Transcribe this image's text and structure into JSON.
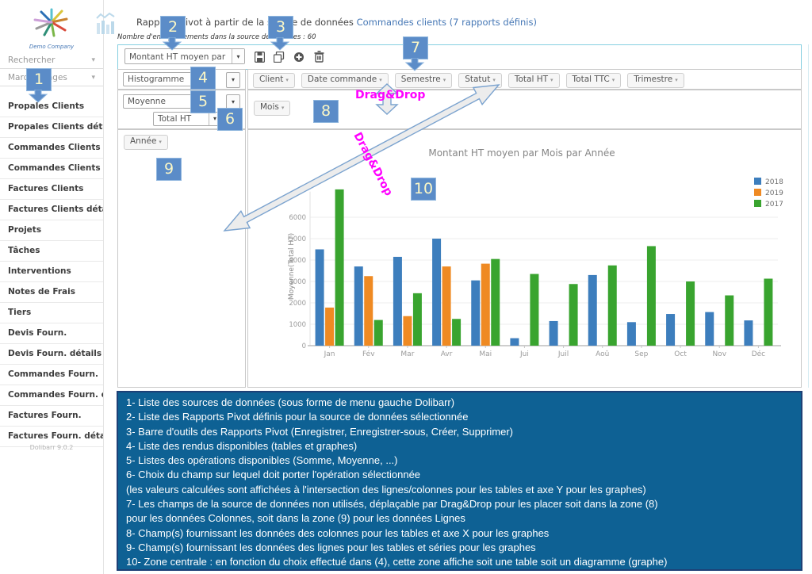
{
  "sidebar": {
    "logo_text": "Demo Company",
    "search_label": "Rechercher",
    "bookmarks_label": "Marque-pages",
    "items": [
      "Propales Clients",
      "Propales Clients détails",
      "Commandes Clients",
      "Commandes Clients dét...",
      "Factures Clients",
      "Factures Clients détails",
      "Projets",
      "Tâches",
      "Interventions",
      "Notes de Frais",
      "Tiers",
      "Devis Fourn.",
      "Devis Fourn. détails",
      "Commandes Fourn.",
      "Commandes Fourn. dét...",
      "Factures Fourn.",
      "Factures Fourn. détails"
    ],
    "footer": "Dolibarr 9.0.2"
  },
  "header": {
    "title_prefix": "Rapports Pivot à partir de la source de données ",
    "title_link": "Commandes clients (7 rapports définis)",
    "records_info": "Nombre d'enregistrements dans la source de données : 60"
  },
  "toolbar": {
    "report_select_value": "Montant HT moyen par Mois pa ...",
    "icon_names": [
      "save-icon",
      "save-as-icon",
      "create-icon",
      "delete-icon"
    ]
  },
  "controls": {
    "render_select_value": "Histogramme",
    "operation_select_value": "Moyenne",
    "field_select_value": "Total HT"
  },
  "pivot": {
    "unused_fields": [
      "Client",
      "Date commande",
      "Semestre",
      "Statut",
      "Total HT",
      "Total TTC",
      "Trimestre"
    ],
    "column_fields": [
      "Mois"
    ],
    "row_fields": [
      "Année"
    ]
  },
  "icons": {
    "caret": "▾"
  },
  "annotations": {
    "numbers": [
      "1",
      "2",
      "3",
      "4",
      "5",
      "6",
      "7",
      "8",
      "9",
      "10"
    ],
    "dragdrop_label": "Drag&Drop",
    "callout_color": "#5b8cc8",
    "magenta": "#ff00ff"
  },
  "help_box": {
    "background": "#0e6194",
    "lines": [
      "1- Liste des sources de données (sous forme de menu gauche Dolibarr)",
      "2- Liste des Rapports Pivot définis pour la source de données sélectionnée",
      "3- Barre d'outils des Rapports Pivot (Enregistrer, Enregistrer-sous, Créer, Supprimer)",
      "4- Liste des rendus disponibles (tables et graphes)",
      "5- Listes des opérations disponibles (Somme, Moyenne, ...)",
      "6- Choix du champ sur lequel doit porter l'opération sélectionnée",
      "(les valeurs calculées sont affichées à l'intersection des lignes/colonnes pour les tables et axe Y pour les graphes)",
      "7- Les champs de la source de données non utilisés, déplaçable par Drag&Drop pour les placer soit dans la zone (8)",
      "pour les données Colonnes, soit dans la zone (9) pour les données Lignes",
      "8- Champ(s) fournissant les données des colonnes pour les tables et axe X pour les graphes",
      "9- Champ(s) fournissant les données des lignes pour les tables et séries pour les graphes",
      "10- Zone centrale : en fonction du choix effectué dans (4), cette zone affiche soit une table soit un diagramme (graphe)"
    ]
  },
  "chart_data": {
    "type": "bar",
    "title": "Montant HT moyen par Mois par Année",
    "xlabel": "",
    "ylabel": "Moyenne(Total HT)",
    "categories": [
      "Jan",
      "Fév",
      "Mar",
      "Avr",
      "Mai",
      "Jui",
      "Juil",
      "Aoû",
      "Sep",
      "Oct",
      "Nov",
      "Déc"
    ],
    "series": [
      {
        "name": "2018",
        "color": "#3d7ebd",
        "values": [
          4500,
          3700,
          4150,
          5000,
          3050,
          350,
          1150,
          3300,
          1100,
          1480,
          1570,
          1180
        ]
      },
      {
        "name": "2019",
        "color": "#ef8a23",
        "values": [
          1780,
          3250,
          1380,
          3700,
          3830,
          null,
          null,
          null,
          null,
          null,
          null,
          null
        ]
      },
      {
        "name": "2017",
        "color": "#39a42f",
        "values": [
          7300,
          1200,
          2450,
          1250,
          4050,
          3350,
          2880,
          3750,
          4650,
          3000,
          2350,
          3130
        ]
      }
    ],
    "yticks": [
      0,
      1000,
      2000,
      3000,
      4000,
      5000,
      6000
    ],
    "ylim": [
      0,
      7400
    ],
    "grid": true,
    "legend_position": "right"
  }
}
